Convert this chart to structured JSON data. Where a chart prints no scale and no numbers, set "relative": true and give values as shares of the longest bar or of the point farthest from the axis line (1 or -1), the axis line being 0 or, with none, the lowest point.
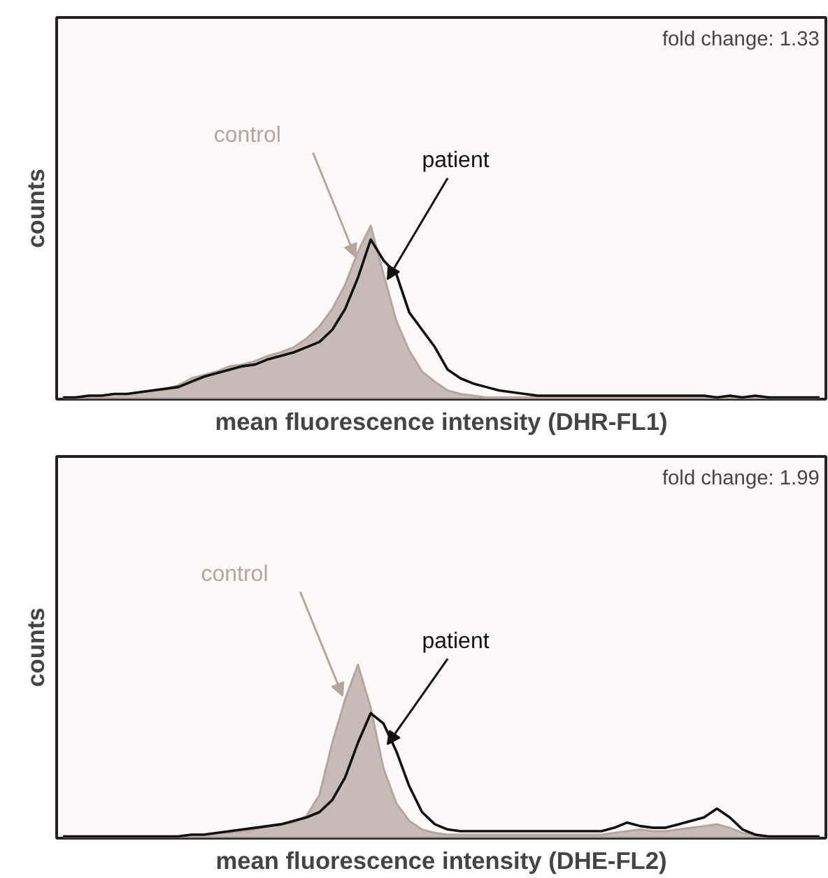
{
  "chart_data": [
    {
      "type": "area",
      "relative": true,
      "xlabel": "mean fluorescence intensity (DHR-FL1)",
      "ylabel": "counts",
      "tick_labels": false,
      "grid": false,
      "legend": false,
      "annotations": [
        "fold change: 1.33"
      ],
      "categories": [
        null,
        null,
        null,
        null,
        null,
        null,
        null,
        null,
        null,
        null,
        null,
        null,
        null,
        null,
        null,
        null,
        null,
        null,
        null,
        null,
        null,
        null,
        null,
        null,
        null,
        null,
        null,
        null,
        null,
        null,
        null,
        null,
        null,
        null,
        null,
        null,
        null,
        null,
        null,
        null,
        null,
        null,
        null,
        null,
        null,
        null,
        null,
        null,
        null,
        null,
        null,
        null,
        null,
        null,
        null,
        null,
        null,
        null,
        null,
        null
      ],
      "series": [
        {
          "name": "control",
          "color": "#b3a69f",
          "values": [
            0.01,
            0.01,
            0.02,
            0.02,
            0.03,
            0.03,
            0.04,
            0.05,
            0.06,
            0.08,
            0.12,
            0.14,
            0.16,
            0.19,
            0.2,
            0.22,
            0.25,
            0.27,
            0.3,
            0.35,
            0.42,
            0.52,
            0.66,
            0.85,
            1.0,
            0.72,
            0.45,
            0.28,
            0.16,
            0.1,
            0.05,
            0.03,
            0.02,
            0.01,
            0.01,
            0.01,
            0.01,
            0.01,
            0.01,
            0.01,
            0.01,
            0.01,
            0.01,
            0.01,
            0.01,
            0.01,
            0.01,
            0.01,
            0.01,
            0.01,
            0.01,
            0.01,
            0.01,
            0.01,
            0.01,
            0.01,
            0.01,
            0.01,
            0.01,
            0.01
          ]
        },
        {
          "name": "patient",
          "type": "line",
          "color": "#111111",
          "values": [
            0.01,
            0.01,
            0.02,
            0.02,
            0.03,
            0.03,
            0.04,
            0.05,
            0.06,
            0.07,
            0.1,
            0.13,
            0.15,
            0.17,
            0.19,
            0.2,
            0.23,
            0.25,
            0.27,
            0.3,
            0.33,
            0.4,
            0.52,
            0.7,
            0.92,
            0.8,
            0.72,
            0.5,
            0.4,
            0.3,
            0.17,
            0.12,
            0.09,
            0.07,
            0.05,
            0.04,
            0.03,
            0.02,
            0.02,
            0.02,
            0.02,
            0.02,
            0.02,
            0.02,
            0.02,
            0.02,
            0.02,
            0.02,
            0.02,
            0.02,
            0.02,
            0.01,
            0.02,
            0.01,
            0.02,
            0.01,
            0.01,
            0.01,
            0.01,
            0.01
          ]
        }
      ]
    },
    {
      "type": "area",
      "relative": true,
      "xlabel": "mean fluorescence intensity (DHE-FL2)",
      "ylabel": "counts",
      "tick_labels": false,
      "grid": false,
      "legend": false,
      "annotations": [
        "fold change: 1.99"
      ],
      "categories": [
        null,
        null,
        null,
        null,
        null,
        null,
        null,
        null,
        null,
        null,
        null,
        null,
        null,
        null,
        null,
        null,
        null,
        null,
        null,
        null,
        null,
        null,
        null,
        null,
        null,
        null,
        null,
        null,
        null,
        null,
        null,
        null,
        null,
        null,
        null,
        null,
        null,
        null,
        null,
        null,
        null,
        null,
        null,
        null,
        null,
        null,
        null,
        null,
        null,
        null,
        null,
        null,
        null,
        null,
        null,
        null,
        null,
        null,
        null,
        null
      ],
      "series": [
        {
          "name": "control",
          "color": "#b3a69f",
          "values": [
            0.01,
            0.01,
            0.01,
            0.01,
            0.01,
            0.01,
            0.01,
            0.01,
            0.01,
            0.01,
            0.02,
            0.02,
            0.03,
            0.03,
            0.04,
            0.05,
            0.07,
            0.08,
            0.09,
            0.13,
            0.25,
            0.55,
            0.8,
            1.0,
            0.75,
            0.4,
            0.2,
            0.1,
            0.05,
            0.03,
            0.02,
            0.02,
            0.02,
            0.02,
            0.02,
            0.02,
            0.02,
            0.02,
            0.02,
            0.02,
            0.02,
            0.02,
            0.02,
            0.03,
            0.04,
            0.05,
            0.04,
            0.04,
            0.05,
            0.06,
            0.07,
            0.08,
            0.06,
            0.03,
            0.02,
            0.01,
            0.01,
            0.01,
            0.01,
            0.01
          ]
        },
        {
          "name": "patient",
          "type": "line",
          "color": "#111111",
          "values": [
            0.01,
            0.01,
            0.01,
            0.01,
            0.01,
            0.01,
            0.01,
            0.01,
            0.01,
            0.01,
            0.02,
            0.02,
            0.03,
            0.04,
            0.05,
            0.06,
            0.07,
            0.08,
            0.1,
            0.12,
            0.15,
            0.22,
            0.35,
            0.55,
            0.72,
            0.66,
            0.5,
            0.3,
            0.15,
            0.08,
            0.05,
            0.04,
            0.04,
            0.04,
            0.04,
            0.04,
            0.04,
            0.04,
            0.04,
            0.04,
            0.04,
            0.04,
            0.04,
            0.06,
            0.09,
            0.07,
            0.06,
            0.06,
            0.08,
            0.1,
            0.12,
            0.17,
            0.12,
            0.05,
            0.02,
            0.01,
            0.01,
            0.01,
            0.01,
            0.01
          ]
        }
      ]
    }
  ]
}
